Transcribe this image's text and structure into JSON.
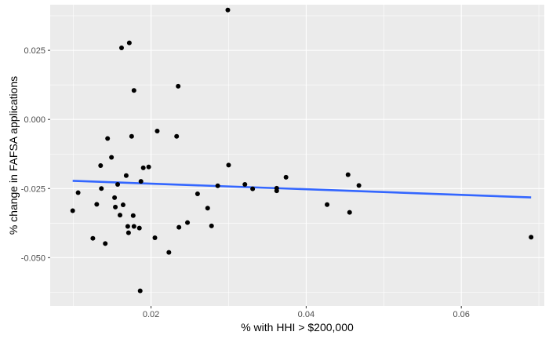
{
  "chart_data": {
    "type": "scatter",
    "title": "",
    "xlabel": "% with HHI > $200,000",
    "ylabel": "% change in FAFSA applications",
    "xlim": [
      0.007,
      0.0707
    ],
    "ylim": [
      -0.0675,
      0.0415
    ],
    "x_ticks": [
      0.02,
      0.04,
      0.06
    ],
    "x_tick_labels": [
      "0.02",
      "0.04",
      "0.06"
    ],
    "y_ticks": [
      0.025,
      0.0,
      -0.025,
      -0.05
    ],
    "y_tick_labels": [
      "0.025",
      "0.000",
      "-0.025",
      "-0.050"
    ],
    "grid": true,
    "legend": "none",
    "points": [
      {
        "x": 0.0099,
        "y": -0.033
      },
      {
        "x": 0.0106,
        "y": -0.0265
      },
      {
        "x": 0.0125,
        "y": -0.043
      },
      {
        "x": 0.013,
        "y": -0.0307
      },
      {
        "x": 0.0135,
        "y": -0.0167
      },
      {
        "x": 0.0136,
        "y": -0.025
      },
      {
        "x": 0.0141,
        "y": -0.0449
      },
      {
        "x": 0.0144,
        "y": -0.0069
      },
      {
        "x": 0.0149,
        "y": -0.0137
      },
      {
        "x": 0.0153,
        "y": -0.0283
      },
      {
        "x": 0.0154,
        "y": -0.0317
      },
      {
        "x": 0.0157,
        "y": -0.0235
      },
      {
        "x": 0.016,
        "y": -0.0346
      },
      {
        "x": 0.0162,
        "y": 0.0259
      },
      {
        "x": 0.0164,
        "y": -0.0309
      },
      {
        "x": 0.0168,
        "y": -0.0203
      },
      {
        "x": 0.017,
        "y": -0.0387
      },
      {
        "x": 0.0171,
        "y": -0.041
      },
      {
        "x": 0.0172,
        "y": 0.0277
      },
      {
        "x": 0.0175,
        "y": -0.0061
      },
      {
        "x": 0.0177,
        "y": -0.0348
      },
      {
        "x": 0.0178,
        "y": 0.0105
      },
      {
        "x": 0.0178,
        "y": -0.0387
      },
      {
        "x": 0.0185,
        "y": -0.0393
      },
      {
        "x": 0.0186,
        "y": -0.062
      },
      {
        "x": 0.0187,
        "y": -0.0224
      },
      {
        "x": 0.019,
        "y": -0.0175
      },
      {
        "x": 0.0197,
        "y": -0.0172
      },
      {
        "x": 0.0205,
        "y": -0.0428
      },
      {
        "x": 0.0208,
        "y": -0.0042
      },
      {
        "x": 0.0223,
        "y": -0.0481
      },
      {
        "x": 0.0233,
        "y": -0.0061
      },
      {
        "x": 0.0235,
        "y": 0.012
      },
      {
        "x": 0.0236,
        "y": -0.039
      },
      {
        "x": 0.0247,
        "y": -0.0373
      },
      {
        "x": 0.026,
        "y": -0.0269
      },
      {
        "x": 0.0273,
        "y": -0.0321
      },
      {
        "x": 0.0278,
        "y": -0.0385
      },
      {
        "x": 0.0286,
        "y": -0.024
      },
      {
        "x": 0.0299,
        "y": 0.0396
      },
      {
        "x": 0.03,
        "y": -0.0165
      },
      {
        "x": 0.0321,
        "y": -0.0235
      },
      {
        "x": 0.0331,
        "y": -0.0251
      },
      {
        "x": 0.0362,
        "y": -0.0249
      },
      {
        "x": 0.0362,
        "y": -0.0258
      },
      {
        "x": 0.0374,
        "y": -0.0209
      },
      {
        "x": 0.0427,
        "y": -0.0308
      },
      {
        "x": 0.0454,
        "y": -0.02
      },
      {
        "x": 0.0456,
        "y": -0.0336
      },
      {
        "x": 0.0468,
        "y": -0.0239
      },
      {
        "x": 0.069,
        "y": -0.0426
      }
    ],
    "trend_line": {
      "x": [
        0.0099,
        0.069
      ],
      "y": [
        -0.0222,
        -0.0282
      ],
      "color": "#3366ff"
    },
    "colors": {
      "panel": "#ebebeb",
      "grid": "#ffffff",
      "point": "#000000"
    }
  }
}
